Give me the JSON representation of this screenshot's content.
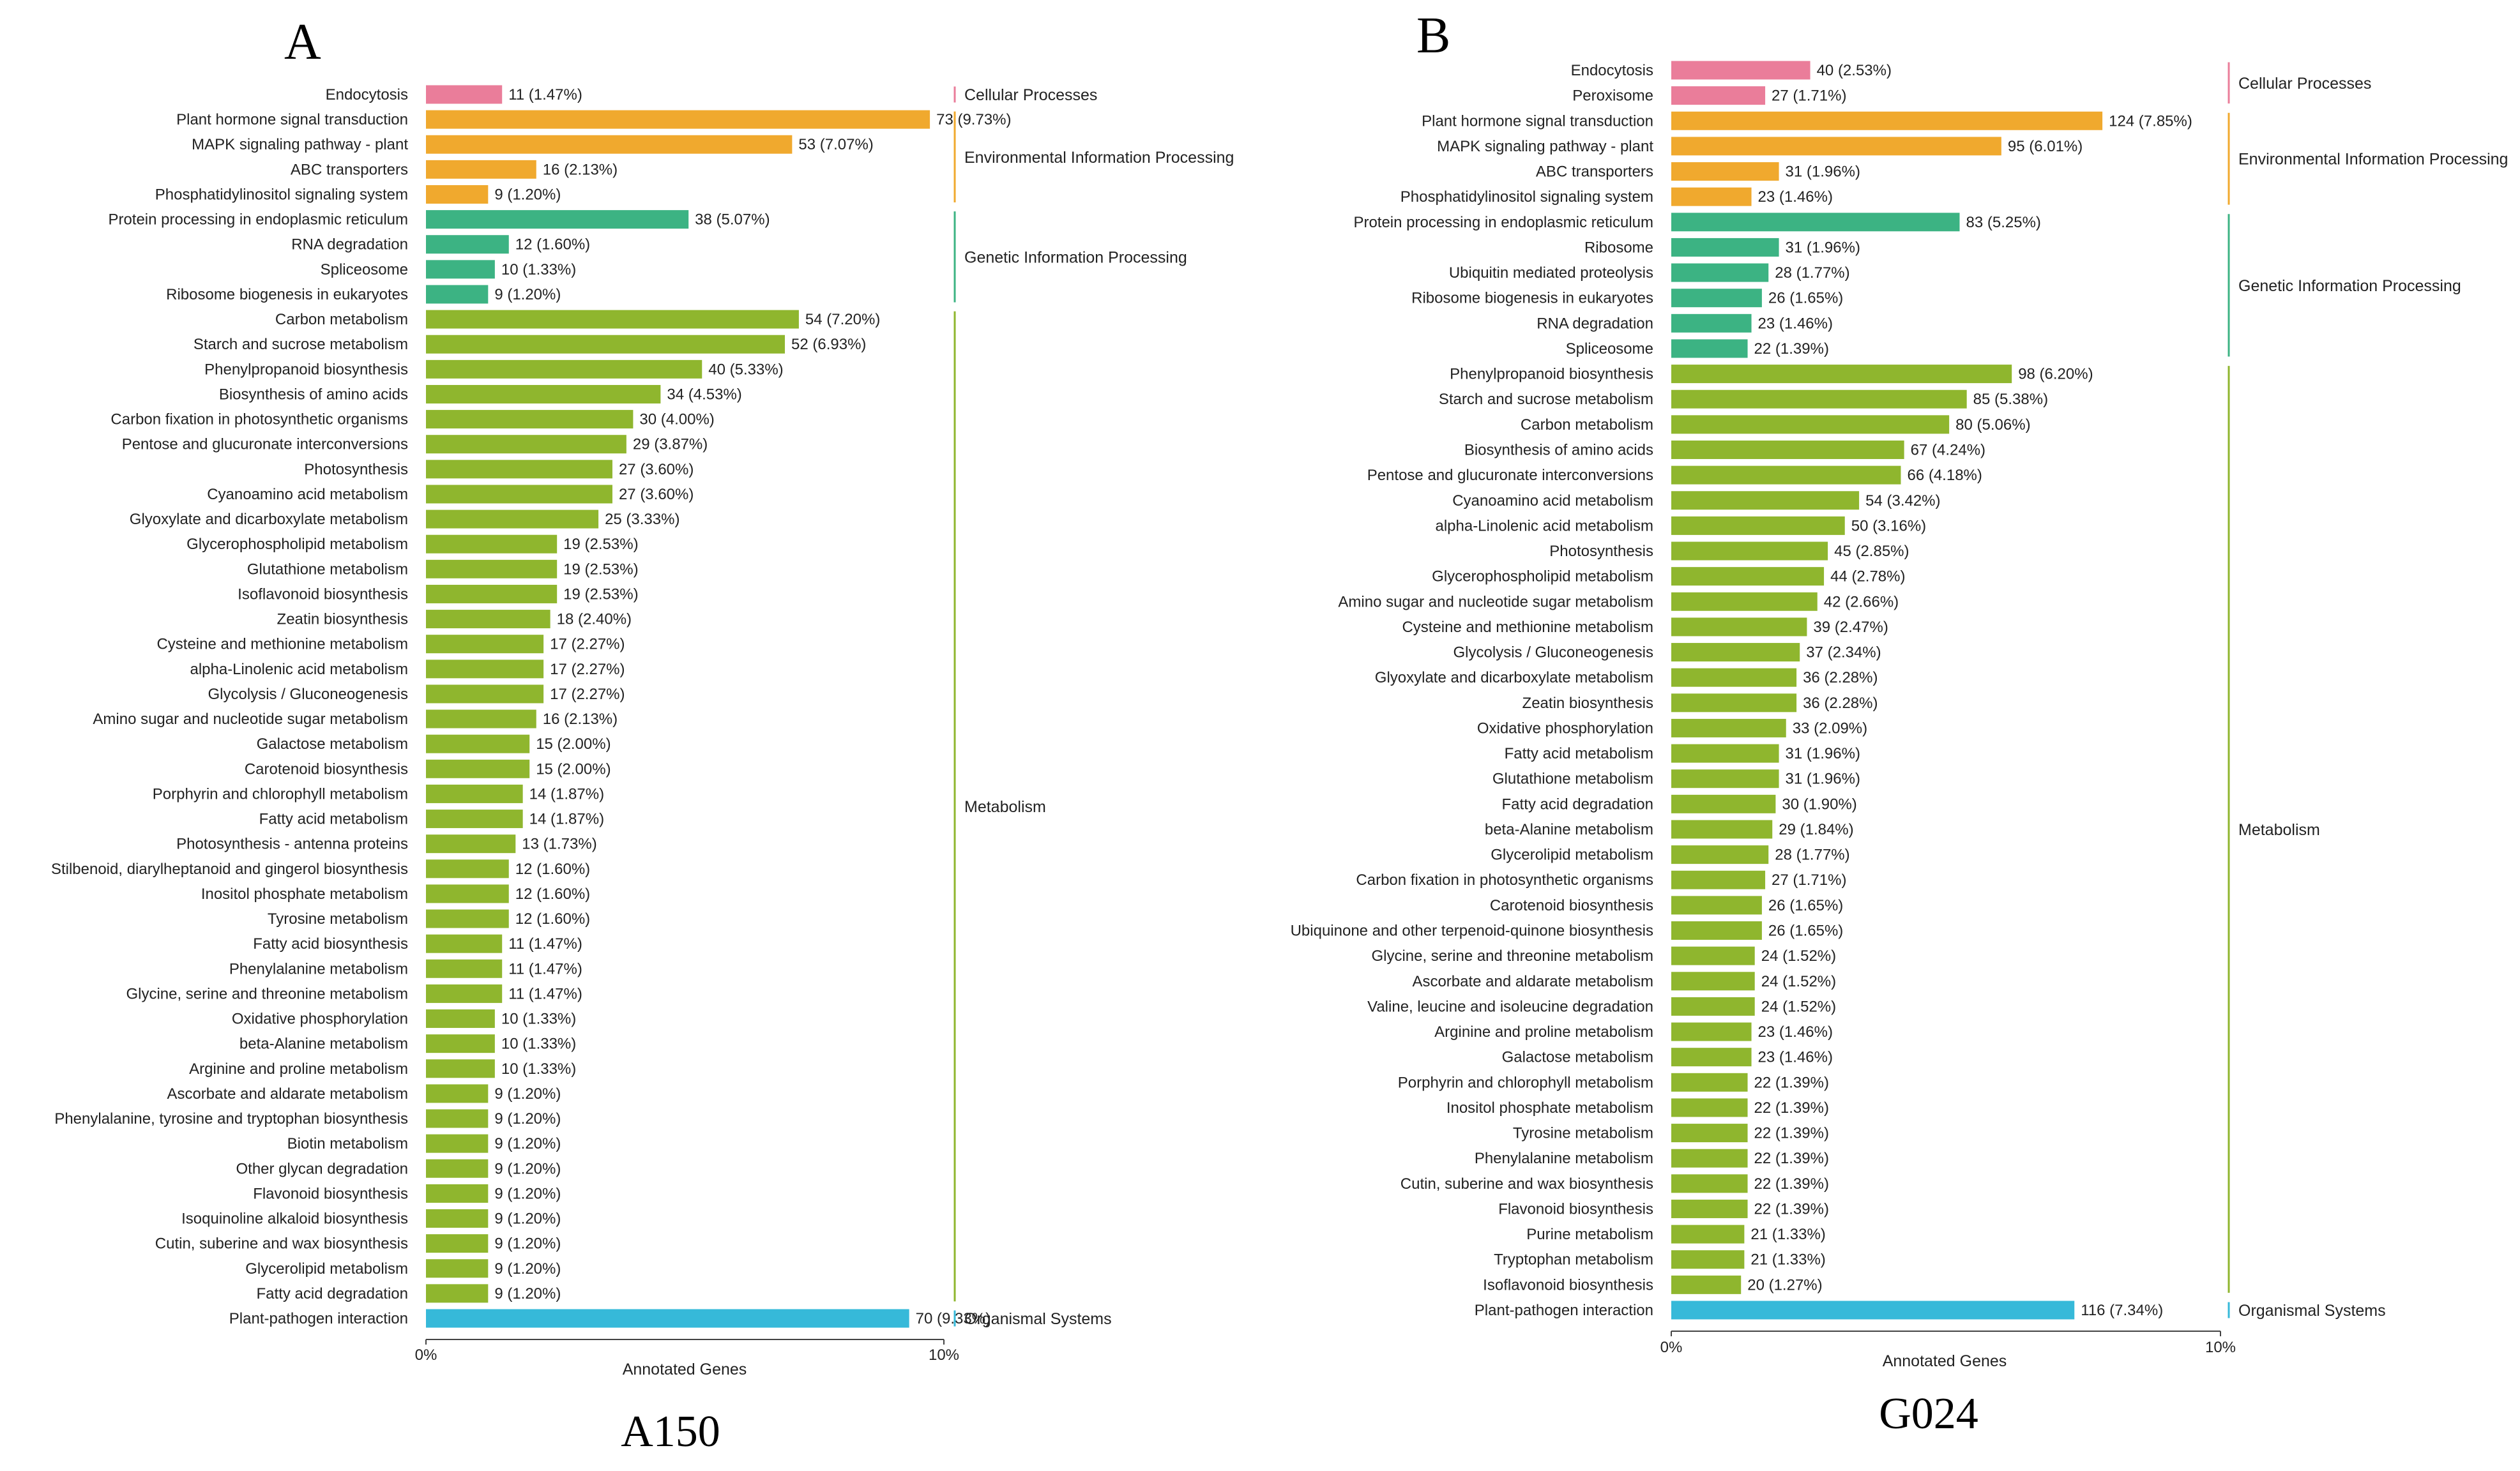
{
  "colors": {
    "Cellular Processes": "#ea7d9a",
    "Environmental Information Processing": "#f0a92e",
    "Genetic Information Processing": "#3cb383",
    "Metabolism": "#8fb62e",
    "Organismal Systems": "#36b9d9"
  },
  "chart_data": [
    {
      "type": "bar",
      "orientation": "horizontal",
      "panel_letter": "A",
      "caption": "A150",
      "xlabel": "Annotated Genes",
      "xlim": [
        0,
        10
      ],
      "xticks": [
        "0%",
        "10%"
      ],
      "categories": [
        {
          "name": "Endocytosis",
          "value": 11,
          "label": "11 (1.47%)",
          "group": "Cellular Processes"
        },
        {
          "name": "Plant hormone signal transduction",
          "value": 73,
          "label": "73 (9.73%)",
          "group": "Environmental Information Processing"
        },
        {
          "name": "MAPK signaling pathway - plant",
          "value": 53,
          "label": "53 (7.07%)",
          "group": "Environmental Information Processing"
        },
        {
          "name": "ABC transporters",
          "value": 16,
          "label": "16 (2.13%)",
          "group": "Environmental Information Processing"
        },
        {
          "name": "Phosphatidylinositol signaling system",
          "value": 9,
          "label": "9 (1.20%)",
          "group": "Environmental Information Processing"
        },
        {
          "name": "Protein processing in endoplasmic reticulum",
          "value": 38,
          "label": "38 (5.07%)",
          "group": "Genetic Information Processing"
        },
        {
          "name": "RNA degradation",
          "value": 12,
          "label": "12 (1.60%)",
          "group": "Genetic Information Processing"
        },
        {
          "name": "Spliceosome",
          "value": 10,
          "label": "10 (1.33%)",
          "group": "Genetic Information Processing"
        },
        {
          "name": "Ribosome biogenesis in eukaryotes",
          "value": 9,
          "label": "9 (1.20%)",
          "group": "Genetic Information Processing"
        },
        {
          "name": "Carbon metabolism",
          "value": 54,
          "label": "54 (7.20%)",
          "group": "Metabolism"
        },
        {
          "name": "Starch and sucrose metabolism",
          "value": 52,
          "label": "52 (6.93%)",
          "group": "Metabolism"
        },
        {
          "name": "Phenylpropanoid biosynthesis",
          "value": 40,
          "label": "40 (5.33%)",
          "group": "Metabolism"
        },
        {
          "name": "Biosynthesis of amino acids",
          "value": 34,
          "label": "34 (4.53%)",
          "group": "Metabolism"
        },
        {
          "name": "Carbon fixation in photosynthetic organisms",
          "value": 30,
          "label": "30 (4.00%)",
          "group": "Metabolism"
        },
        {
          "name": "Pentose and glucuronate interconversions",
          "value": 29,
          "label": "29 (3.87%)",
          "group": "Metabolism"
        },
        {
          "name": "Photosynthesis",
          "value": 27,
          "label": "27 (3.60%)",
          "group": "Metabolism"
        },
        {
          "name": "Cyanoamino acid metabolism",
          "value": 27,
          "label": "27 (3.60%)",
          "group": "Metabolism"
        },
        {
          "name": "Glyoxylate and dicarboxylate metabolism",
          "value": 25,
          "label": "25 (3.33%)",
          "group": "Metabolism"
        },
        {
          "name": "Glycerophospholipid metabolism",
          "value": 19,
          "label": "19 (2.53%)",
          "group": "Metabolism"
        },
        {
          "name": "Glutathione metabolism",
          "value": 19,
          "label": "19 (2.53%)",
          "group": "Metabolism"
        },
        {
          "name": "Isoflavonoid biosynthesis",
          "value": 19,
          "label": "19 (2.53%)",
          "group": "Metabolism"
        },
        {
          "name": "Zeatin biosynthesis",
          "value": 18,
          "label": "18 (2.40%)",
          "group": "Metabolism"
        },
        {
          "name": "Cysteine and methionine metabolism",
          "value": 17,
          "label": "17 (2.27%)",
          "group": "Metabolism"
        },
        {
          "name": "alpha-Linolenic acid metabolism",
          "value": 17,
          "label": "17 (2.27%)",
          "group": "Metabolism"
        },
        {
          "name": "Glycolysis / Gluconeogenesis",
          "value": 17,
          "label": "17 (2.27%)",
          "group": "Metabolism"
        },
        {
          "name": "Amino sugar and nucleotide sugar metabolism",
          "value": 16,
          "label": "16 (2.13%)",
          "group": "Metabolism"
        },
        {
          "name": "Galactose metabolism",
          "value": 15,
          "label": "15 (2.00%)",
          "group": "Metabolism"
        },
        {
          "name": "Carotenoid biosynthesis",
          "value": 15,
          "label": "15 (2.00%)",
          "group": "Metabolism"
        },
        {
          "name": "Porphyrin and chlorophyll metabolism",
          "value": 14,
          "label": "14 (1.87%)",
          "group": "Metabolism"
        },
        {
          "name": "Fatty acid metabolism",
          "value": 14,
          "label": "14 (1.87%)",
          "group": "Metabolism"
        },
        {
          "name": "Photosynthesis - antenna proteins",
          "value": 13,
          "label": "13 (1.73%)",
          "group": "Metabolism"
        },
        {
          "name": "Stilbenoid, diarylheptanoid and gingerol biosynthesis",
          "value": 12,
          "label": "12 (1.60%)",
          "group": "Metabolism"
        },
        {
          "name": "Inositol phosphate metabolism",
          "value": 12,
          "label": "12 (1.60%)",
          "group": "Metabolism"
        },
        {
          "name": "Tyrosine metabolism",
          "value": 12,
          "label": "12 (1.60%)",
          "group": "Metabolism"
        },
        {
          "name": "Fatty acid biosynthesis",
          "value": 11,
          "label": "11 (1.47%)",
          "group": "Metabolism"
        },
        {
          "name": "Phenylalanine metabolism",
          "value": 11,
          "label": "11 (1.47%)",
          "group": "Metabolism"
        },
        {
          "name": "Glycine, serine and threonine metabolism",
          "value": 11,
          "label": "11 (1.47%)",
          "group": "Metabolism"
        },
        {
          "name": "Oxidative phosphorylation",
          "value": 10,
          "label": "10 (1.33%)",
          "group": "Metabolism"
        },
        {
          "name": "beta-Alanine metabolism",
          "value": 10,
          "label": "10 (1.33%)",
          "group": "Metabolism"
        },
        {
          "name": "Arginine and proline metabolism",
          "value": 10,
          "label": "10 (1.33%)",
          "group": "Metabolism"
        },
        {
          "name": "Ascorbate and aldarate metabolism",
          "value": 9,
          "label": "9 (1.20%)",
          "group": "Metabolism"
        },
        {
          "name": "Phenylalanine, tyrosine and tryptophan biosynthesis",
          "value": 9,
          "label": "9 (1.20%)",
          "group": "Metabolism"
        },
        {
          "name": "Biotin metabolism",
          "value": 9,
          "label": "9 (1.20%)",
          "group": "Metabolism"
        },
        {
          "name": "Other glycan degradation",
          "value": 9,
          "label": "9 (1.20%)",
          "group": "Metabolism"
        },
        {
          "name": "Flavonoid biosynthesis",
          "value": 9,
          "label": "9 (1.20%)",
          "group": "Metabolism"
        },
        {
          "name": "Isoquinoline alkaloid biosynthesis",
          "value": 9,
          "label": "9 (1.20%)",
          "group": "Metabolism"
        },
        {
          "name": "Cutin, suberine and wax biosynthesis",
          "value": 9,
          "label": "9 (1.20%)",
          "group": "Metabolism"
        },
        {
          "name": "Glycerolipid metabolism",
          "value": 9,
          "label": "9 (1.20%)",
          "group": "Metabolism"
        },
        {
          "name": "Fatty acid degradation",
          "value": 9,
          "label": "9 (1.20%)",
          "group": "Metabolism"
        },
        {
          "name": "Plant-pathogen interaction",
          "value": 70,
          "label": "70 (9.33%)",
          "group": "Organismal Systems"
        }
      ],
      "groups": [
        "Cellular Processes",
        "Environmental Information Processing",
        "Genetic Information Processing",
        "Metabolism",
        "Organismal Systems"
      ]
    },
    {
      "type": "bar",
      "orientation": "horizontal",
      "panel_letter": "B",
      "caption": "G024",
      "xlabel": "Annotated Genes",
      "xlim": [
        0,
        10
      ],
      "xticks": [
        "0%",
        "10%"
      ],
      "categories": [
        {
          "name": "Endocytosis",
          "value": 40,
          "label": "40 (2.53%)",
          "group": "Cellular Processes"
        },
        {
          "name": "Peroxisome",
          "value": 27,
          "label": "27 (1.71%)",
          "group": "Cellular Processes"
        },
        {
          "name": "Plant hormone signal transduction",
          "value": 124,
          "label": "124 (7.85%)",
          "group": "Environmental Information Processing"
        },
        {
          "name": "MAPK signaling pathway - plant",
          "value": 95,
          "label": "95 (6.01%)",
          "group": "Environmental Information Processing"
        },
        {
          "name": "ABC transporters",
          "value": 31,
          "label": "31 (1.96%)",
          "group": "Environmental Information Processing"
        },
        {
          "name": "Phosphatidylinositol signaling system",
          "value": 23,
          "label": "23 (1.46%)",
          "group": "Environmental Information Processing"
        },
        {
          "name": "Protein processing in endoplasmic reticulum",
          "value": 83,
          "label": "83 (5.25%)",
          "group": "Genetic Information Processing"
        },
        {
          "name": "Ribosome",
          "value": 31,
          "label": "31 (1.96%)",
          "group": "Genetic Information Processing"
        },
        {
          "name": "Ubiquitin mediated proteolysis",
          "value": 28,
          "label": "28 (1.77%)",
          "group": "Genetic Information Processing"
        },
        {
          "name": "Ribosome biogenesis in eukaryotes",
          "value": 26,
          "label": "26 (1.65%)",
          "group": "Genetic Information Processing"
        },
        {
          "name": "RNA degradation",
          "value": 23,
          "label": "23 (1.46%)",
          "group": "Genetic Information Processing"
        },
        {
          "name": "Spliceosome",
          "value": 22,
          "label": "22 (1.39%)",
          "group": "Genetic Information Processing"
        },
        {
          "name": "Phenylpropanoid biosynthesis",
          "value": 98,
          "label": "98 (6.20%)",
          "group": "Metabolism"
        },
        {
          "name": "Starch and sucrose metabolism",
          "value": 85,
          "label": "85 (5.38%)",
          "group": "Metabolism"
        },
        {
          "name": "Carbon metabolism",
          "value": 80,
          "label": "80 (5.06%)",
          "group": "Metabolism"
        },
        {
          "name": "Biosynthesis of amino acids",
          "value": 67,
          "label": "67 (4.24%)",
          "group": "Metabolism"
        },
        {
          "name": "Pentose and glucuronate interconversions",
          "value": 66,
          "label": "66 (4.18%)",
          "group": "Metabolism"
        },
        {
          "name": "Cyanoamino acid metabolism",
          "value": 54,
          "label": "54 (3.42%)",
          "group": "Metabolism"
        },
        {
          "name": "alpha-Linolenic acid metabolism",
          "value": 50,
          "label": "50 (3.16%)",
          "group": "Metabolism"
        },
        {
          "name": "Photosynthesis",
          "value": 45,
          "label": "45 (2.85%)",
          "group": "Metabolism"
        },
        {
          "name": "Glycerophospholipid metabolism",
          "value": 44,
          "label": "44 (2.78%)",
          "group": "Metabolism"
        },
        {
          "name": "Amino sugar and nucleotide sugar metabolism",
          "value": 42,
          "label": "42 (2.66%)",
          "group": "Metabolism"
        },
        {
          "name": "Cysteine and methionine metabolism",
          "value": 39,
          "label": "39 (2.47%)",
          "group": "Metabolism"
        },
        {
          "name": "Glycolysis / Gluconeogenesis",
          "value": 37,
          "label": "37 (2.34%)",
          "group": "Metabolism"
        },
        {
          "name": "Glyoxylate and dicarboxylate metabolism",
          "value": 36,
          "label": "36 (2.28%)",
          "group": "Metabolism"
        },
        {
          "name": "Zeatin biosynthesis",
          "value": 36,
          "label": "36 (2.28%)",
          "group": "Metabolism"
        },
        {
          "name": "Oxidative phosphorylation",
          "value": 33,
          "label": "33 (2.09%)",
          "group": "Metabolism"
        },
        {
          "name": "Fatty acid metabolism",
          "value": 31,
          "label": "31 (1.96%)",
          "group": "Metabolism"
        },
        {
          "name": "Glutathione metabolism",
          "value": 31,
          "label": "31 (1.96%)",
          "group": "Metabolism"
        },
        {
          "name": "Fatty acid degradation",
          "value": 30,
          "label": "30 (1.90%)",
          "group": "Metabolism"
        },
        {
          "name": "beta-Alanine metabolism",
          "value": 29,
          "label": "29 (1.84%)",
          "group": "Metabolism"
        },
        {
          "name": "Glycerolipid metabolism",
          "value": 28,
          "label": "28 (1.77%)",
          "group": "Metabolism"
        },
        {
          "name": "Carbon fixation in photosynthetic organisms",
          "value": 27,
          "label": "27 (1.71%)",
          "group": "Metabolism"
        },
        {
          "name": "Carotenoid biosynthesis",
          "value": 26,
          "label": "26 (1.65%)",
          "group": "Metabolism"
        },
        {
          "name": "Ubiquinone and other terpenoid-quinone biosynthesis",
          "value": 26,
          "label": "26 (1.65%)",
          "group": "Metabolism"
        },
        {
          "name": "Glycine, serine and threonine metabolism",
          "value": 24,
          "label": "24 (1.52%)",
          "group": "Metabolism"
        },
        {
          "name": "Ascorbate and aldarate metabolism",
          "value": 24,
          "label": "24 (1.52%)",
          "group": "Metabolism"
        },
        {
          "name": "Valine, leucine and isoleucine degradation",
          "value": 24,
          "label": "24 (1.52%)",
          "group": "Metabolism"
        },
        {
          "name": "Arginine and proline metabolism",
          "value": 23,
          "label": "23 (1.46%)",
          "group": "Metabolism"
        },
        {
          "name": "Galactose metabolism",
          "value": 23,
          "label": "23 (1.46%)",
          "group": "Metabolism"
        },
        {
          "name": "Porphyrin and chlorophyll metabolism",
          "value": 22,
          "label": "22 (1.39%)",
          "group": "Metabolism"
        },
        {
          "name": "Inositol phosphate metabolism",
          "value": 22,
          "label": "22 (1.39%)",
          "group": "Metabolism"
        },
        {
          "name": "Tyrosine metabolism",
          "value": 22,
          "label": "22 (1.39%)",
          "group": "Metabolism"
        },
        {
          "name": "Phenylalanine metabolism",
          "value": 22,
          "label": "22 (1.39%)",
          "group": "Metabolism"
        },
        {
          "name": "Cutin, suberine and wax biosynthesis",
          "value": 22,
          "label": "22 (1.39%)",
          "group": "Metabolism"
        },
        {
          "name": "Flavonoid biosynthesis",
          "value": 22,
          "label": "22 (1.39%)",
          "group": "Metabolism"
        },
        {
          "name": "Purine metabolism",
          "value": 21,
          "label": "21 (1.33%)",
          "group": "Metabolism"
        },
        {
          "name": "Tryptophan metabolism",
          "value": 21,
          "label": "21 (1.33%)",
          "group": "Metabolism"
        },
        {
          "name": "Isoflavonoid biosynthesis",
          "value": 20,
          "label": "20 (1.27%)",
          "group": "Metabolism"
        },
        {
          "name": "Plant-pathogen interaction",
          "value": 116,
          "label": "116 (7.34%)",
          "group": "Organismal Systems"
        }
      ],
      "groups": [
        "Cellular Processes",
        "Environmental Information Processing",
        "Genetic Information Processing",
        "Metabolism",
        "Organismal Systems"
      ]
    }
  ]
}
